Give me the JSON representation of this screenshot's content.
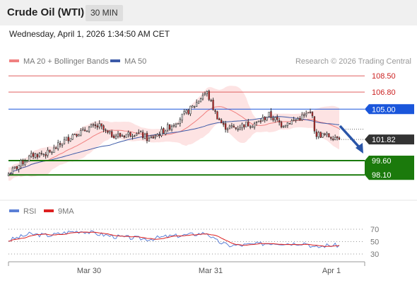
{
  "header": {
    "title": "Crude Oil (WTI)",
    "timeframe": "30 MIN",
    "datetime": "Wednesday, April 1, 2026 1:34:50 AM CET"
  },
  "legend": {
    "ma20_label": "MA 20 + Bollinger Bands",
    "ma50_label": "MA 50",
    "credit": "Research © 2026 Trading Central",
    "rsi_label": "RSI",
    "rsi_ma_label": "9MA"
  },
  "colors": {
    "ma20": "#f08080",
    "bollinger_fill": "#fddcdc",
    "ma50": "#3c5aa8",
    "pivot": "#1a56db",
    "support": "#1b7a0c",
    "resistance": "#e06060",
    "current": "#333333",
    "arrow": "#2a55a8",
    "rsi": "#5b7fd6",
    "rsi_ma": "#dd2020",
    "candle_up": "#ffffff",
    "candle_down": "#d42020"
  },
  "chart_data": {
    "type": "candlestick",
    "y_range": [
      97.0,
      110.0
    ],
    "x_labels": [
      "Mar 30",
      "Mar 31",
      "Apr 1"
    ],
    "levels": [
      {
        "value": 108.5,
        "label": "108.50",
        "kind": "resistance"
      },
      {
        "value": 106.8,
        "label": "106.80",
        "kind": "resistance"
      },
      {
        "value": 105.0,
        "label": "105.00",
        "kind": "pivot"
      },
      {
        "value": 101.82,
        "label": "101.82",
        "kind": "current"
      },
      {
        "value": 99.6,
        "label": "99.60",
        "kind": "support"
      },
      {
        "value": 98.1,
        "label": "98.10",
        "kind": "support"
      }
    ],
    "anchors": [
      [
        0,
        98.2
      ],
      [
        6,
        99.3
      ],
      [
        12,
        100.2
      ],
      [
        20,
        100.4
      ],
      [
        26,
        101.5
      ],
      [
        32,
        102.5
      ],
      [
        36,
        102.6
      ],
      [
        38,
        103.0
      ],
      [
        44,
        103.2
      ],
      [
        48,
        102.4
      ],
      [
        54,
        102.2
      ],
      [
        62,
        102.6
      ],
      [
        68,
        101.8
      ],
      [
        74,
        102.6
      ],
      [
        80,
        103.5
      ],
      [
        86,
        104.6
      ],
      [
        90,
        105.4
      ],
      [
        94,
        106.5
      ],
      [
        96,
        106.7
      ],
      [
        100,
        104.6
      ],
      [
        104,
        103.2
      ],
      [
        110,
        103.0
      ],
      [
        114,
        103.4
      ],
      [
        120,
        103.5
      ],
      [
        126,
        104.4
      ],
      [
        132,
        103.4
      ],
      [
        138,
        103.8
      ],
      [
        144,
        104.4
      ],
      [
        147,
        104.6
      ],
      [
        148,
        102.4
      ],
      [
        154,
        102.2
      ],
      [
        158,
        102.1
      ],
      [
        160,
        102.4
      ]
    ],
    "rsi": {
      "y_range": [
        20,
        80
      ],
      "levels": [
        70,
        50,
        30
      ],
      "anchors": [
        [
          0,
          52
        ],
        [
          10,
          62
        ],
        [
          20,
          60
        ],
        [
          30,
          66
        ],
        [
          36,
          67
        ],
        [
          44,
          62
        ],
        [
          52,
          58
        ],
        [
          60,
          56
        ],
        [
          68,
          54
        ],
        [
          76,
          58
        ],
        [
          84,
          60
        ],
        [
          90,
          62
        ],
        [
          96,
          64
        ],
        [
          100,
          52
        ],
        [
          106,
          44
        ],
        [
          112,
          44
        ],
        [
          120,
          46
        ],
        [
          128,
          48
        ],
        [
          136,
          47
        ],
        [
          144,
          48
        ],
        [
          148,
          40
        ],
        [
          154,
          44
        ],
        [
          160,
          44
        ]
      ]
    }
  }
}
